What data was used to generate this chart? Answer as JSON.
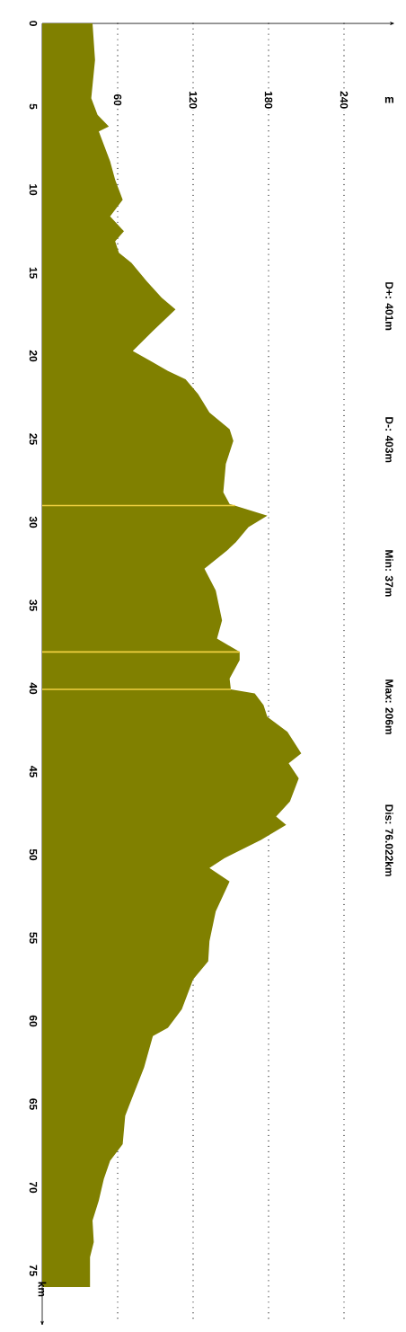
{
  "chart_data": {
    "type": "area",
    "orientation": "horizontal",
    "xlabel": "m",
    "ylabel": "km",
    "annotations": [
      "D+: 401m",
      "D-: 403m",
      "Min: 37m",
      "Max: 206m",
      "Dis: 76.022km"
    ],
    "x": [
      0,
      2.2,
      4.5,
      5.5,
      6.2,
      6.5,
      8.3,
      9.4,
      10.6,
      11.6,
      12.5,
      13.1,
      13.8,
      14.4,
      15.5,
      16.5,
      17.2,
      18.5,
      19.7,
      20.3,
      20.9,
      21.4,
      22.3,
      23.4,
      24.4,
      25.1,
      26.5,
      28.2,
      28.9,
      29.6,
      30.3,
      31.2,
      31.7,
      32.8,
      34.1,
      35.9,
      37.0,
      37.8,
      38.3,
      39.4,
      40.05,
      40.3,
      41.0,
      41.7,
      42.6,
      43.9,
      44.5,
      45.4,
      46.8,
      47.7,
      48.2,
      49.1,
      50.2,
      50.8,
      51.6,
      53.4,
      55.2,
      56.4,
      57.5,
      59.3,
      60.4,
      60.9,
      62.8,
      65.1,
      65.7,
      67.4,
      68.4,
      69.5,
      70.8,
      72.0,
      73.3,
      74.2,
      76.0
    ],
    "values": [
      40,
      42,
      39,
      44,
      53,
      45,
      54,
      58,
      64,
      54,
      65,
      58,
      61,
      71,
      83,
      95,
      106,
      88,
      72,
      86,
      100,
      114,
      124,
      133,
      149,
      152,
      146,
      144,
      149,
      179,
      164,
      154,
      147,
      129,
      138,
      143,
      139,
      157,
      157,
      149,
      150,
      169,
      176,
      179,
      195,
      206,
      196,
      204,
      197,
      186,
      194,
      174,
      145,
      133,
      149,
      138,
      133,
      132,
      120,
      111,
      100,
      88,
      81,
      69,
      66,
      64,
      54,
      49,
      45,
      40,
      41,
      38,
      38
    ],
    "color": "#808000",
    "xlim": [
      0,
      276
    ],
    "ylim": [
      78,
      0
    ],
    "xticks": [
      60,
      120,
      180,
      240
    ],
    "yticks": [
      0,
      5,
      10,
      15,
      20,
      25,
      30,
      35,
      40,
      45,
      50,
      55,
      60,
      65,
      70,
      75
    ],
    "grid": "x",
    "ref_lines": [
      {
        "axis": "y",
        "value": 29.0,
        "color": "#f0d040"
      },
      {
        "axis": "y",
        "value": 37.8,
        "color": "#f0d040"
      },
      {
        "axis": "y",
        "value": 40.05,
        "color": "#f0d040"
      }
    ]
  }
}
